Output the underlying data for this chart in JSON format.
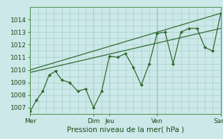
{
  "xlabel": "Pression niveau de la mer( hPa )",
  "bg_color": "#cce8e8",
  "grid_color": "#a8cece",
  "line_color": "#2d6a2d",
  "dark_line_color": "#3a7a3a",
  "ylim": [
    1006.5,
    1014.8
  ],
  "xlim": [
    0.0,
    1.0
  ],
  "data_x": [
    0.0,
    0.033,
    0.066,
    0.1,
    0.133,
    0.166,
    0.208,
    0.25,
    0.291,
    0.333,
    0.375,
    0.416,
    0.458,
    0.5,
    0.541,
    0.583,
    0.625,
    0.666,
    0.708,
    0.75,
    0.791,
    0.833,
    0.875,
    0.916,
    0.958,
    1.0
  ],
  "data_y": [
    1006.7,
    1007.6,
    1008.3,
    1009.6,
    1009.9,
    1009.2,
    1009.0,
    1008.3,
    1008.5,
    1007.0,
    1008.3,
    1011.1,
    1011.0,
    1011.3,
    1010.2,
    1008.8,
    1010.5,
    1012.9,
    1013.0,
    1010.5,
    1013.0,
    1013.3,
    1013.3,
    1011.8,
    1011.5,
    1014.5
  ],
  "trend_x": [
    0.0,
    1.0
  ],
  "trend_y": [
    1009.8,
    1013.3
  ],
  "trend2_x": [
    0.0,
    1.0
  ],
  "trend2_y": [
    1010.0,
    1014.5
  ],
  "yticks": [
    1007,
    1008,
    1009,
    1010,
    1011,
    1012,
    1013,
    1014
  ],
  "xtick_positions": [
    0.0,
    0.333,
    0.416,
    0.666,
    1.0
  ],
  "xtick_labels": [
    "Mer",
    "Dim",
    "Jeu",
    "Ven",
    "Sam"
  ],
  "minor_xtick_count": 24,
  "xlabel_fontsize": 7.5,
  "tick_fontsize": 6.5
}
